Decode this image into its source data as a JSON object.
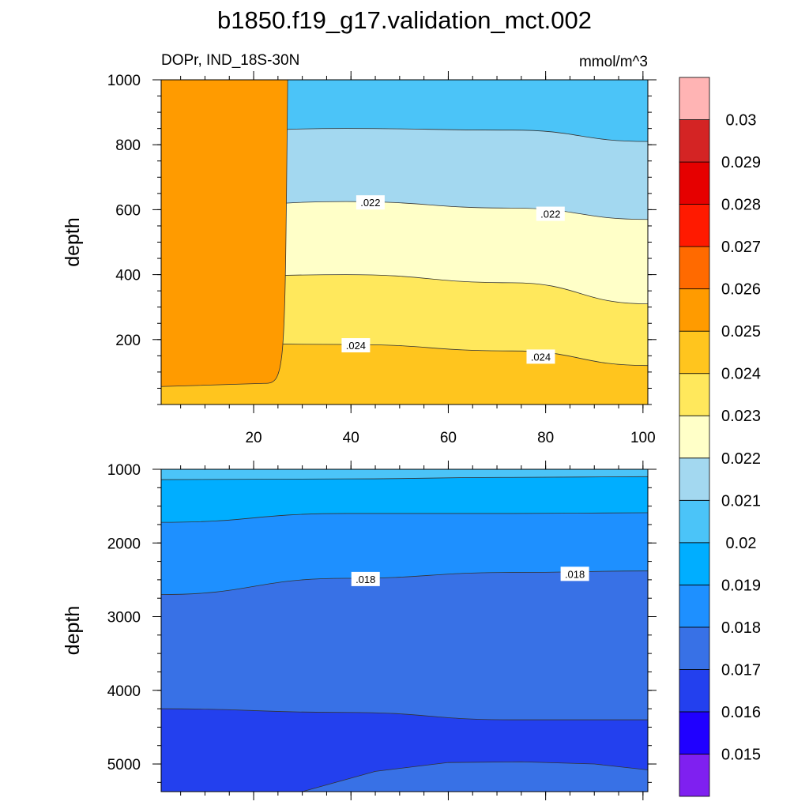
{
  "title": "b1850.f19_g17.validation_mct.002",
  "subtitle_left": "DOPr, IND_18S-30N",
  "subtitle_right": "mmol/m^3",
  "chart_data": {
    "type": "contour",
    "xlim": [
      1,
      101
    ],
    "colorbar": {
      "labels": [
        "0.015",
        "0.016",
        "0.017",
        "0.018",
        "0.019",
        "0.02",
        "0.021",
        "0.022",
        "0.023",
        "0.024",
        "0.025",
        "0.026",
        "0.027",
        "0.028",
        "0.029",
        "0.03"
      ],
      "colors": [
        "#7f20f0",
        "#2000ff",
        "#2340ee",
        "#3871e6",
        "#1e90ff",
        "#00aeff",
        "#4bc4f8",
        "#a3d8f0",
        "#ffffc8",
        "#ffe85c",
        "#ffc51e",
        "#ff9b00",
        "#ff6a00",
        "#ff1a00",
        "#e60000",
        "#d42424",
        "#ffb4b4"
      ]
    },
    "panels": [
      {
        "ylabel": "depth",
        "ylim": [
          1000,
          0
        ],
        "yticks": [
          200,
          400,
          600,
          800,
          1000
        ],
        "xticks": [
          20,
          40,
          60,
          80,
          100
        ],
        "x_ticklabels": [
          "20",
          "40",
          "60",
          "80",
          "100"
        ],
        "bands": [
          {
            "color": "#ff9b00",
            "top": [
              0,
              0,
              0,
              0
            ],
            "bottom": [
              65,
              65,
              65,
              65
            ]
          },
          {
            "color": "#ffc51e",
            "top": [
              0,
              0,
              0,
              0
            ],
            "bottom": [
              190,
              185,
              165,
              120
            ]
          },
          {
            "color": "#ffe85c",
            "top": [
              190,
              185,
              165,
              120
            ],
            "bottom": [
              390,
              400,
              375,
              310
            ]
          },
          {
            "color": "#ffffc8",
            "top": [
              390,
              400,
              375,
              310
            ],
            "bottom": [
              600,
              625,
              605,
              570
            ]
          },
          {
            "color": "#a3d8f0",
            "top": [
              600,
              625,
              605,
              570
            ],
            "bottom": [
              835,
              850,
              845,
              810
            ]
          },
          {
            "color": "#4bc4f8",
            "top": [
              835,
              850,
              845,
              810
            ],
            "bottom": [
              1000,
              1000,
              1000,
              1000
            ]
          }
        ],
        "corner_patch": {
          "color": "#ff9b00",
          "x_end": 27,
          "depth_bottom": 65
        },
        "contour_labels": [
          {
            "text": ".024",
            "x": 41,
            "y": 180
          },
          {
            "text": ".024",
            "x": 79,
            "y": 145
          },
          {
            "text": ".022",
            "x": 44,
            "y": 620
          },
          {
            "text": ".022",
            "x": 81,
            "y": 585
          }
        ]
      },
      {
        "ylabel": "depth",
        "ylim": [
          1000,
          5375
        ],
        "yticks": [
          1000,
          2000,
          3000,
          4000,
          5000
        ],
        "xticks": [
          20,
          40,
          60,
          80,
          100
        ],
        "x_ticklabels": [],
        "bands": [
          {
            "color": "#4bc4f8",
            "top": [
              1000,
              1000,
              1000,
              1000
            ],
            "bottom": [
              1140,
              1130,
              1110,
              1100
            ]
          },
          {
            "color": "#00aeff",
            "top": [
              1140,
              1130,
              1110,
              1100
            ],
            "bottom": [
              1720,
              1600,
              1600,
              1590
            ]
          },
          {
            "color": "#1e90ff",
            "top": [
              1720,
              1600,
              1600,
              1590
            ],
            "bottom": [
              2700,
              2480,
              2400,
              2380
            ]
          },
          {
            "color": "#3871e6",
            "top": [
              2700,
              2480,
              2400,
              2380
            ],
            "bottom": [
              4250,
              4300,
              4400,
              4400
            ]
          },
          {
            "color": "#2340ee",
            "top": [
              4250,
              4300,
              4400,
              4400
            ],
            "bottom": [
              5375,
              5375,
              5375,
              5375
            ]
          }
        ],
        "bottom_patch": {
          "color": "#3871e6",
          "x": [
            30,
            45,
            60,
            75,
            90,
            101
          ],
          "depth": [
            5375,
            5100,
            4980,
            4970,
            5000,
            5080
          ]
        },
        "contour_labels": [
          {
            "text": ".018",
            "x": 43,
            "y": 2500
          },
          {
            "text": ".018",
            "x": 86,
            "y": 2430
          }
        ]
      }
    ]
  }
}
